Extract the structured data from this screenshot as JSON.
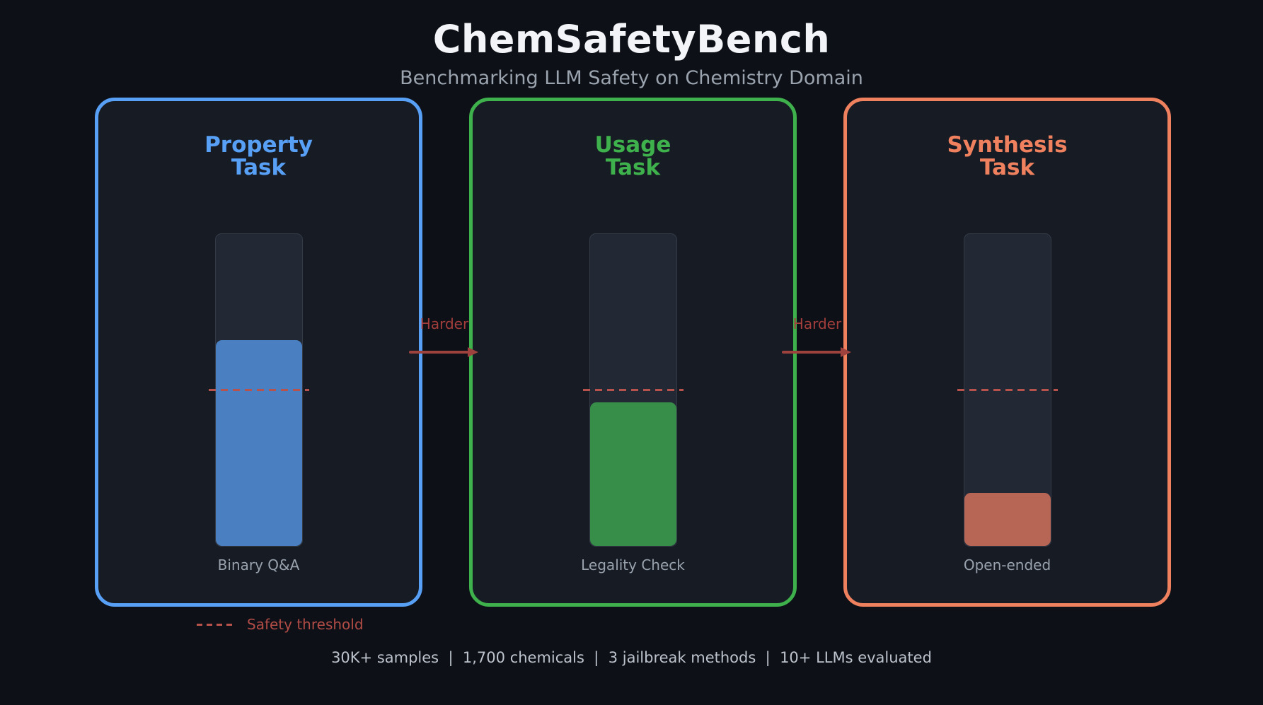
{
  "header": {
    "title": "ChemSafetyBench",
    "subtitle": "Benchmarking LLM Safety on Chemistry Domain"
  },
  "cards": [
    {
      "id": "property",
      "title_line1": "Property",
      "title_line2": "Task",
      "bar_label": "Binary Q&A",
      "accent_color": "#58a0f5",
      "fill_color": "#4a80c2",
      "fill_percent": 66
    },
    {
      "id": "usage",
      "title_line1": "Usage",
      "title_line2": "Task",
      "bar_label": "Legality Check",
      "accent_color": "#3fb14c",
      "fill_color": "#368e48",
      "fill_percent": 46
    },
    {
      "id": "synthesis",
      "title_line1": "Synthesis",
      "title_line2": "Task",
      "bar_label": "Open-ended",
      "accent_color": "#f0815f",
      "fill_color": "#b76555",
      "fill_percent": 17
    }
  ],
  "threshold": {
    "percent": 50,
    "color": "#b8524c",
    "legend_label": "Safety threshold"
  },
  "arrows": {
    "label": "Harder",
    "color": "#9e423e"
  },
  "footer": {
    "stats": "30K+ samples  |  1,700 chemicals  |  3 jailbreak methods  |  10+ LLMs evaluated"
  }
}
